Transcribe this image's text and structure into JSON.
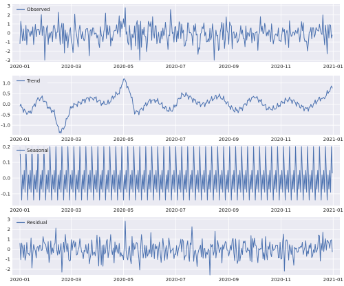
{
  "chart_data": [
    {
      "type": "line",
      "legend": "Observed",
      "legend_position": "top-left",
      "line_color": "#4c72b0",
      "grid": true,
      "x_range": [
        "2020-01-01",
        "2020-12-31"
      ],
      "x_ticks": [
        "2020-01",
        "2020-03",
        "2020-05",
        "2020-07",
        "2020-09",
        "2020-11",
        "2021-01"
      ],
      "y_ticks": [
        3,
        2,
        1,
        0,
        -1,
        -2,
        -3
      ],
      "ylim": [
        -3.2,
        3.2
      ],
      "shape": "noise",
      "amplitude": 1.2,
      "points": [
        [
          "2020-01-01",
          -1.2
        ],
        [
          "2020-01-30",
          -3.0
        ],
        [
          "2020-02-15",
          2.3
        ],
        [
          "2020-03-05",
          2.1
        ],
        [
          "2020-04-10",
          2.2
        ],
        [
          "2020-05-03",
          2.8
        ],
        [
          "2020-05-20",
          -3.0
        ],
        [
          "2020-06-25",
          2.6
        ],
        [
          "2020-08-15",
          -3.0
        ],
        [
          "2020-12-20",
          2.0
        ],
        [
          "2020-12-25",
          -2.3
        ],
        [
          "2020-12-31",
          -0.2
        ]
      ]
    },
    {
      "type": "line",
      "legend": "Trend",
      "legend_position": "top-left",
      "line_color": "#4c72b0",
      "grid": true,
      "x_range": [
        "2020-01-01",
        "2020-12-31"
      ],
      "x_ticks": [
        "2020-01",
        "2020-03",
        "2020-05",
        "2020-07",
        "2020-09",
        "2020-11",
        "2021-01"
      ],
      "y_ticks": [
        1.0,
        0.5,
        0.0,
        -0.5,
        -1.0
      ],
      "ylim": [
        -1.45,
        1.35
      ],
      "shape": "trend",
      "points": [
        [
          "2020-01-01",
          -0.1
        ],
        [
          "2020-01-10",
          -0.45
        ],
        [
          "2020-01-25",
          0.3
        ],
        [
          "2020-02-08",
          -0.3
        ],
        [
          "2020-02-17",
          -1.3
        ],
        [
          "2020-03-05",
          0.0
        ],
        [
          "2020-03-25",
          0.3
        ],
        [
          "2020-04-10",
          0.0
        ],
        [
          "2020-04-25",
          0.5
        ],
        [
          "2020-05-02",
          1.2
        ],
        [
          "2020-05-08",
          0.6
        ],
        [
          "2020-05-15",
          -0.4
        ],
        [
          "2020-06-05",
          0.2
        ],
        [
          "2020-06-25",
          -0.3
        ],
        [
          "2020-07-10",
          0.45
        ],
        [
          "2020-08-01",
          0.0
        ],
        [
          "2020-08-20",
          0.35
        ],
        [
          "2020-09-10",
          -0.3
        ],
        [
          "2020-10-01",
          0.3
        ],
        [
          "2020-10-20",
          -0.25
        ],
        [
          "2020-11-10",
          0.2
        ],
        [
          "2020-12-01",
          -0.2
        ],
        [
          "2020-12-20",
          0.3
        ],
        [
          "2020-12-31",
          0.75
        ]
      ]
    },
    {
      "type": "line",
      "legend": "Seasonal",
      "legend_position": "top-left",
      "line_color": "#4c72b0",
      "grid": true,
      "x_range": [
        "2020-01-01",
        "2020-12-31"
      ],
      "x_ticks": [
        "2020-01",
        "2020-03",
        "2020-05",
        "2020-07",
        "2020-09",
        "2020-11",
        "2021-01"
      ],
      "y_ticks": [
        0.2,
        0.1,
        0.0,
        -0.1
      ],
      "ylim": [
        -0.175,
        0.21
      ],
      "shape": "weekly",
      "period_days": 7,
      "weekly_pattern": [
        0.2,
        0.03,
        -0.14,
        0.02,
        -0.07,
        0.05,
        -0.09
      ]
    },
    {
      "type": "line",
      "legend": "Residual",
      "legend_position": "top-left",
      "line_color": "#4c72b0",
      "grid": true,
      "x_range": [
        "2020-01-01",
        "2020-12-31"
      ],
      "x_ticks": [
        "2020-01",
        "2020-03",
        "2020-05",
        "2020-07",
        "2020-09",
        "2020-11",
        "2021-01"
      ],
      "y_ticks": [
        3,
        2,
        1,
        0,
        -1,
        -2
      ],
      "ylim": [
        -2.6,
        3.2
      ],
      "shape": "noise",
      "amplitude": 1.05,
      "points": [
        [
          "2020-01-01",
          0.6
        ],
        [
          "2020-01-15",
          -1.9
        ],
        [
          "2020-02-12",
          2.1
        ],
        [
          "2020-05-03",
          2.8
        ],
        [
          "2020-05-20",
          -2.1
        ],
        [
          "2020-08-10",
          -2.6
        ],
        [
          "2020-11-05",
          -2.2
        ],
        [
          "2020-12-20",
          1.7
        ],
        [
          "2020-12-31",
          -0.3
        ]
      ]
    }
  ]
}
